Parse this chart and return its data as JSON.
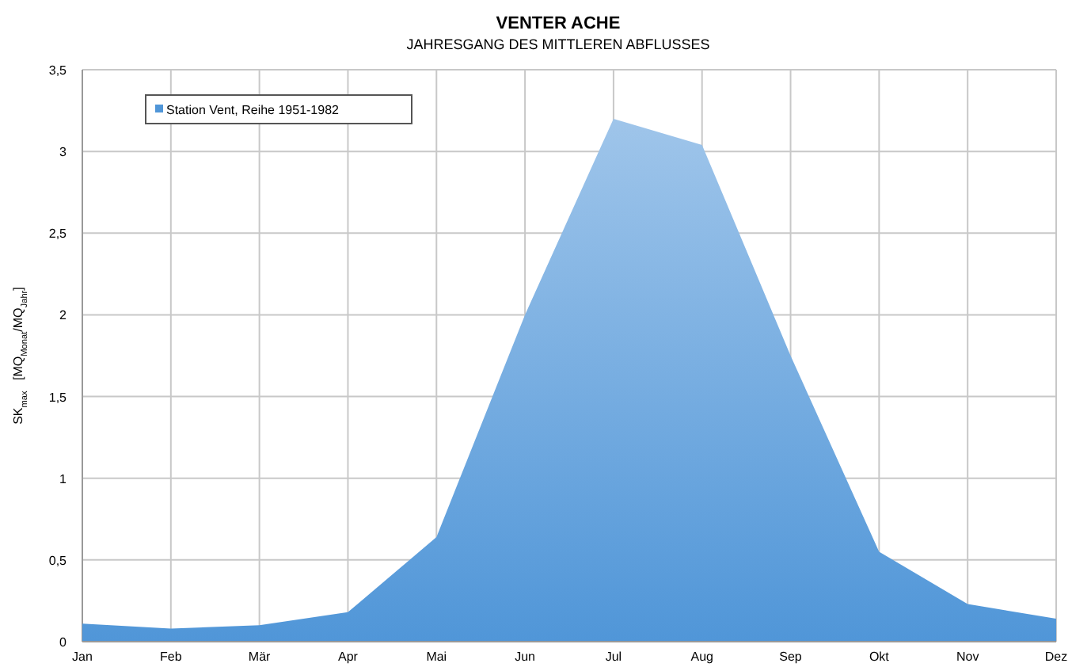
{
  "chart_data": {
    "type": "area",
    "title": "VENTER ACHE",
    "subtitle": "JAHRESGANG DES MITTLEREN ABFLUSSES",
    "ylabel": "SK$_{max}$   [MQ$_{Monat}$/MQ$_{Jahr}$]",
    "categories": [
      "Jan",
      "Feb",
      "Mär",
      "Apr",
      "Mai",
      "Jun",
      "Jul",
      "Aug",
      "Sep",
      "Okt",
      "Nov",
      "Dez"
    ],
    "series": [
      {
        "name": "Station Vent, Reihe 1951-1982",
        "color": "#5096d8",
        "values": [
          0.11,
          0.08,
          0.1,
          0.18,
          0.64,
          2.0,
          3.2,
          3.04,
          1.75,
          0.55,
          0.23,
          0.14
        ]
      }
    ],
    "ylim": [
      0,
      3.5
    ],
    "yticks": [
      {
        "value": 0,
        "label": "0"
      },
      {
        "value": 0.5,
        "label": "0,5"
      },
      {
        "value": 1,
        "label": "1"
      },
      {
        "value": 1.5,
        "label": "1,5"
      },
      {
        "value": 2,
        "label": "2"
      },
      {
        "value": 2.5,
        "label": "2,5"
      },
      {
        "value": 3,
        "label": "3"
      },
      {
        "value": 3.5,
        "label": "3,5"
      }
    ],
    "grid": true,
    "legend": "top left"
  }
}
